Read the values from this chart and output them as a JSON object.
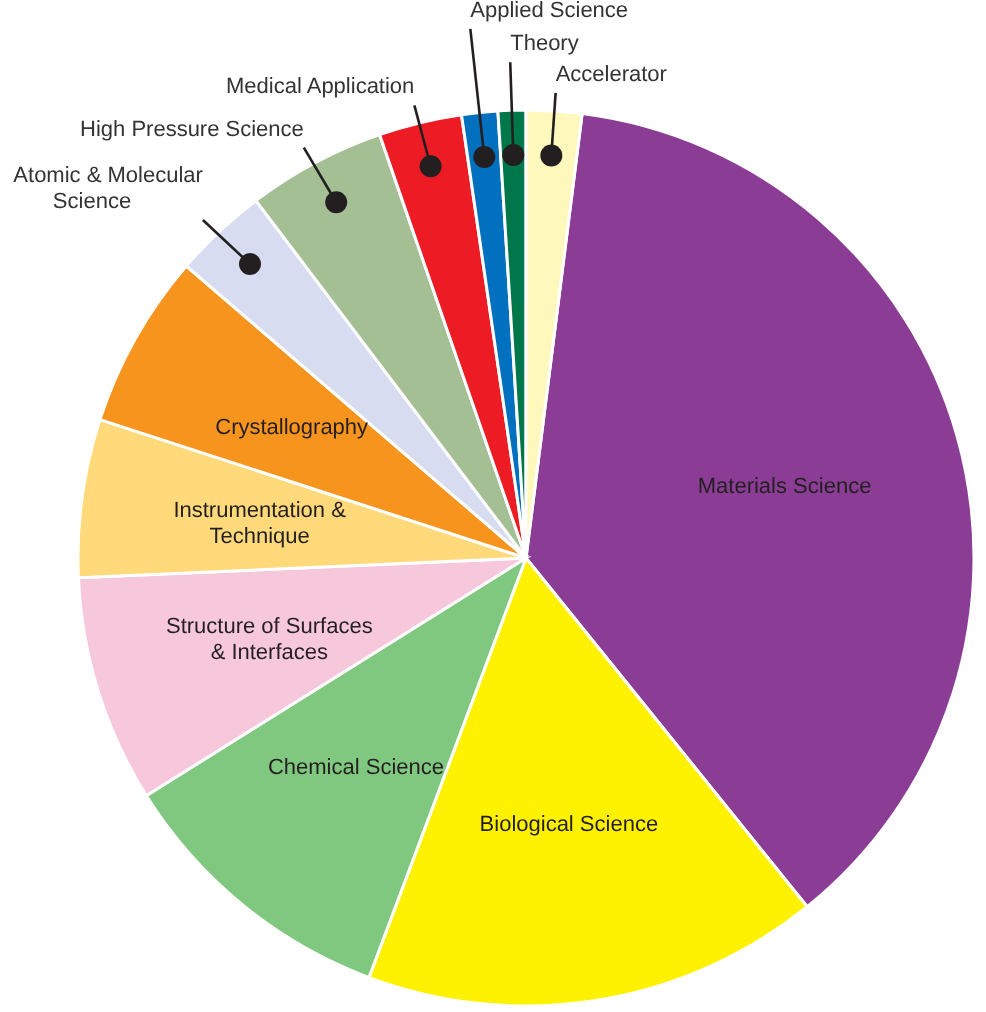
{
  "chart_data": {
    "type": "pie",
    "legend": false,
    "categories": [
      "Materials Science",
      "Biological Science",
      "Chemical Science",
      "Structure of Surfaces & Interfaces",
      "Instrumentation & Technique",
      "Crystallography",
      "Atomic & Molecular Science",
      "High Pressure Science",
      "Medical Application",
      "Applied Science",
      "Theory",
      "Accelerator"
    ],
    "values": [
      37.2,
      16.5,
      10.4,
      8.2,
      5.7,
      6.3,
      3.4,
      5,
      3,
      1.3,
      1,
      2
    ],
    "colors": [
      "#8b3d96",
      "#fff200",
      "#80c77f",
      "#f7c8dc",
      "#ffd97a",
      "#f7941d",
      "#d7dcf0",
      "#a4bf94",
      "#ed1c24",
      "#0070bf",
      "#00774a",
      "#fff8bc"
    ]
  }
}
